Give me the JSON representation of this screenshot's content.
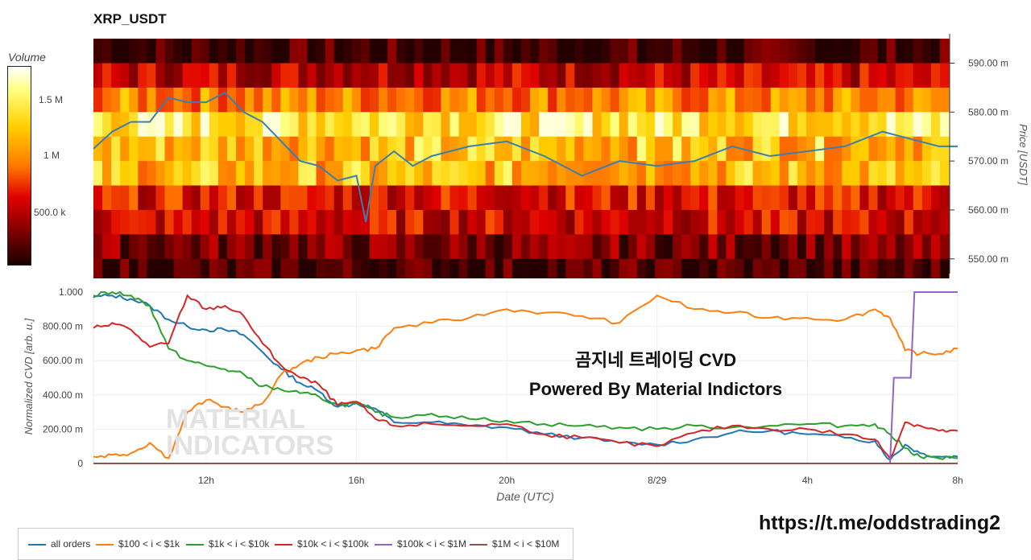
{
  "title": "XRP_USDT",
  "colorbar": {
    "title": "Volume",
    "ticks": [
      {
        "label": "1.5 M",
        "value": 1500000
      },
      {
        "label": "1 M",
        "value": 1000000
      },
      {
        "label": "500.0 k",
        "value": 500000
      }
    ],
    "range": [
      0,
      1900000
    ]
  },
  "watermark": {
    "line1": "곰지네 트레이딩 CVD",
    "line2": "Powered By Material Indictors"
  },
  "logo_text": {
    "line1": "MATERIAL",
    "line2": "INDICATORS"
  },
  "telegram_link": "https://t.me/oddstrading2",
  "colors": {
    "all_orders": "#1f77b4",
    "b100_1k": "#ff7f0e",
    "b1k_10k": "#2ca02c",
    "b10k_100k": "#d62728",
    "b100k_1m": "#9467bd",
    "b1m_10m": "#8c564b",
    "price_line": "#3a7fb0"
  },
  "chart_data": [
    {
      "type": "heatmap",
      "title": "XRP_USDT",
      "ylabel": "Price [USDT]",
      "yticks": [
        "550.00 m",
        "560.00 m",
        "570.00 m",
        "580.00 m",
        "590.00 m"
      ],
      "ylim": [
        0.547,
        0.596
      ],
      "price_levels": [
        0.5925,
        0.5875,
        0.5825,
        0.5775,
        0.5725,
        0.5675,
        0.5625,
        0.5575,
        0.5525,
        0.5475
      ],
      "volume_intensity_profile": [
        0.08,
        0.35,
        0.62,
        0.86,
        0.74,
        0.72,
        0.42,
        0.38,
        0.2,
        0.1
      ],
      "price_series": {
        "t_hours": [
          9.0,
          9.5,
          10.0,
          10.5,
          11.0,
          11.5,
          12.0,
          12.5,
          13.0,
          13.5,
          14.0,
          14.5,
          15.0,
          15.5,
          16.0,
          16.25,
          16.5,
          17.0,
          17.5,
          18.0,
          19.0,
          20.0,
          21.0,
          22.0,
          23.0,
          24.0,
          25.0,
          26.0,
          27.0,
          28.0,
          29.0,
          30.0,
          30.5,
          31.0,
          31.5,
          32.0
        ],
        "price": [
          0.5725,
          0.576,
          0.578,
          0.578,
          0.583,
          0.582,
          0.582,
          0.584,
          0.58,
          0.578,
          0.574,
          0.57,
          0.569,
          0.566,
          0.567,
          0.5575,
          0.569,
          0.572,
          0.569,
          0.571,
          0.573,
          0.574,
          0.571,
          0.567,
          0.57,
          0.569,
          0.57,
          0.573,
          0.571,
          0.572,
          0.573,
          0.576,
          0.575,
          0.574,
          0.573,
          0.573
        ]
      }
    },
    {
      "type": "line",
      "xlabel": "Date (UTC)",
      "ylabel": "Normalized CVD [arb. u.]",
      "xlim": [
        9.0,
        32.0
      ],
      "ylim": [
        0,
        1.0
      ],
      "x_ticks": [
        {
          "label": "12h",
          "value": 12
        },
        {
          "label": "16h",
          "value": 16
        },
        {
          "label": "20h",
          "value": 20
        },
        {
          "label": "8/29",
          "value": 24
        },
        {
          "label": "4h",
          "value": 28
        },
        {
          "label": "8h",
          "value": 32
        }
      ],
      "y_ticks": [
        {
          "label": "0",
          "value": 0
        },
        {
          "label": "200.00 m",
          "value": 0.2
        },
        {
          "label": "400.00 m",
          "value": 0.4
        },
        {
          "label": "600.00 m",
          "value": 0.6
        },
        {
          "label": "800.00 m",
          "value": 0.8
        },
        {
          "label": "1.000",
          "value": 1.0
        }
      ],
      "series": [
        {
          "name": "all orders",
          "color": "#1f77b4",
          "x": [
            9.0,
            9.5,
            10.0,
            10.5,
            11.0,
            11.5,
            12.0,
            12.5,
            13.0,
            13.5,
            14.0,
            14.5,
            15.0,
            15.5,
            16.0,
            16.5,
            17.0,
            18.0,
            19.0,
            20.0,
            21.0,
            22.0,
            23.0,
            24.0,
            25.0,
            26.0,
            27.0,
            28.0,
            29.0,
            29.8,
            30.2,
            30.6,
            31.0,
            31.5,
            32.0
          ],
          "y": [
            0.97,
            0.98,
            0.96,
            0.92,
            0.84,
            0.8,
            0.78,
            0.78,
            0.75,
            0.65,
            0.55,
            0.47,
            0.42,
            0.33,
            0.35,
            0.32,
            0.24,
            0.24,
            0.22,
            0.21,
            0.17,
            0.15,
            0.12,
            0.11,
            0.14,
            0.18,
            0.19,
            0.17,
            0.15,
            0.13,
            0.02,
            0.11,
            0.06,
            0.04,
            0.04
          ]
        },
        {
          "name": "$100 < i < $1k",
          "color": "#ff7f0e",
          "x": [
            9.0,
            9.5,
            10.0,
            10.5,
            11.0,
            11.5,
            12.0,
            12.5,
            13.0,
            13.5,
            14.0,
            14.5,
            15.0,
            15.5,
            16.0,
            16.5,
            17.0,
            18.0,
            19.0,
            20.0,
            21.0,
            22.0,
            23.0,
            24.0,
            25.0,
            26.0,
            27.0,
            28.0,
            29.0,
            29.8,
            30.2,
            30.6,
            31.0,
            31.5,
            32.0
          ],
          "y": [
            0.04,
            0.05,
            0.06,
            0.12,
            0.03,
            0.3,
            0.37,
            0.33,
            0.3,
            0.35,
            0.52,
            0.58,
            0.62,
            0.64,
            0.66,
            0.67,
            0.79,
            0.82,
            0.85,
            0.9,
            0.88,
            0.86,
            0.82,
            0.98,
            0.9,
            0.88,
            0.85,
            0.85,
            0.84,
            0.9,
            0.85,
            0.66,
            0.64,
            0.64,
            0.67
          ]
        },
        {
          "name": "$1k < i < $10k",
          "color": "#2ca02c",
          "x": [
            9.0,
            9.5,
            10.0,
            10.5,
            11.0,
            11.5,
            12.0,
            12.5,
            13.0,
            13.5,
            14.0,
            14.5,
            15.0,
            15.5,
            16.0,
            16.5,
            17.0,
            18.0,
            19.0,
            20.0,
            21.0,
            22.0,
            23.0,
            24.0,
            25.0,
            26.0,
            27.0,
            28.0,
            29.0,
            29.8,
            30.2,
            30.6,
            31.0,
            31.5,
            32.0
          ],
          "y": [
            0.98,
            1.0,
            0.98,
            0.92,
            0.67,
            0.6,
            0.57,
            0.55,
            0.52,
            0.45,
            0.43,
            0.41,
            0.39,
            0.34,
            0.35,
            0.3,
            0.27,
            0.29,
            0.26,
            0.25,
            0.23,
            0.22,
            0.21,
            0.2,
            0.22,
            0.21,
            0.22,
            0.23,
            0.22,
            0.23,
            0.17,
            0.09,
            0.04,
            0.03,
            0.03
          ]
        },
        {
          "name": "$10k < i < $100k",
          "color": "#d62728",
          "x": [
            9.0,
            9.5,
            10.0,
            10.5,
            11.0,
            11.5,
            12.0,
            12.5,
            13.0,
            13.5,
            14.0,
            14.5,
            15.0,
            15.5,
            16.0,
            16.5,
            17.0,
            18.0,
            19.0,
            20.0,
            21.0,
            22.0,
            23.0,
            24.0,
            25.0,
            26.0,
            27.0,
            28.0,
            29.0,
            29.8,
            30.2,
            30.6,
            31.0,
            31.5,
            32.0
          ],
          "y": [
            0.79,
            0.82,
            0.78,
            0.68,
            0.7,
            0.98,
            0.9,
            0.92,
            0.86,
            0.7,
            0.57,
            0.5,
            0.46,
            0.34,
            0.36,
            0.26,
            0.22,
            0.23,
            0.22,
            0.23,
            0.17,
            0.15,
            0.12,
            0.1,
            0.18,
            0.22,
            0.2,
            0.2,
            0.17,
            0.14,
            0.03,
            0.24,
            0.22,
            0.19,
            0.19
          ]
        },
        {
          "name": "$100k < i < $1M",
          "color": "#9467bd",
          "x": [
            9.0,
            30.2,
            30.3,
            30.75,
            30.85,
            32.0
          ],
          "y": [
            0.0,
            0.0,
            0.5,
            0.5,
            1.0,
            1.0
          ]
        },
        {
          "name": "$1M < i < $10M",
          "color": "#8c564b",
          "x": [
            9.0,
            32.0
          ],
          "y": [
            0.0,
            0.0
          ]
        }
      ]
    }
  ]
}
